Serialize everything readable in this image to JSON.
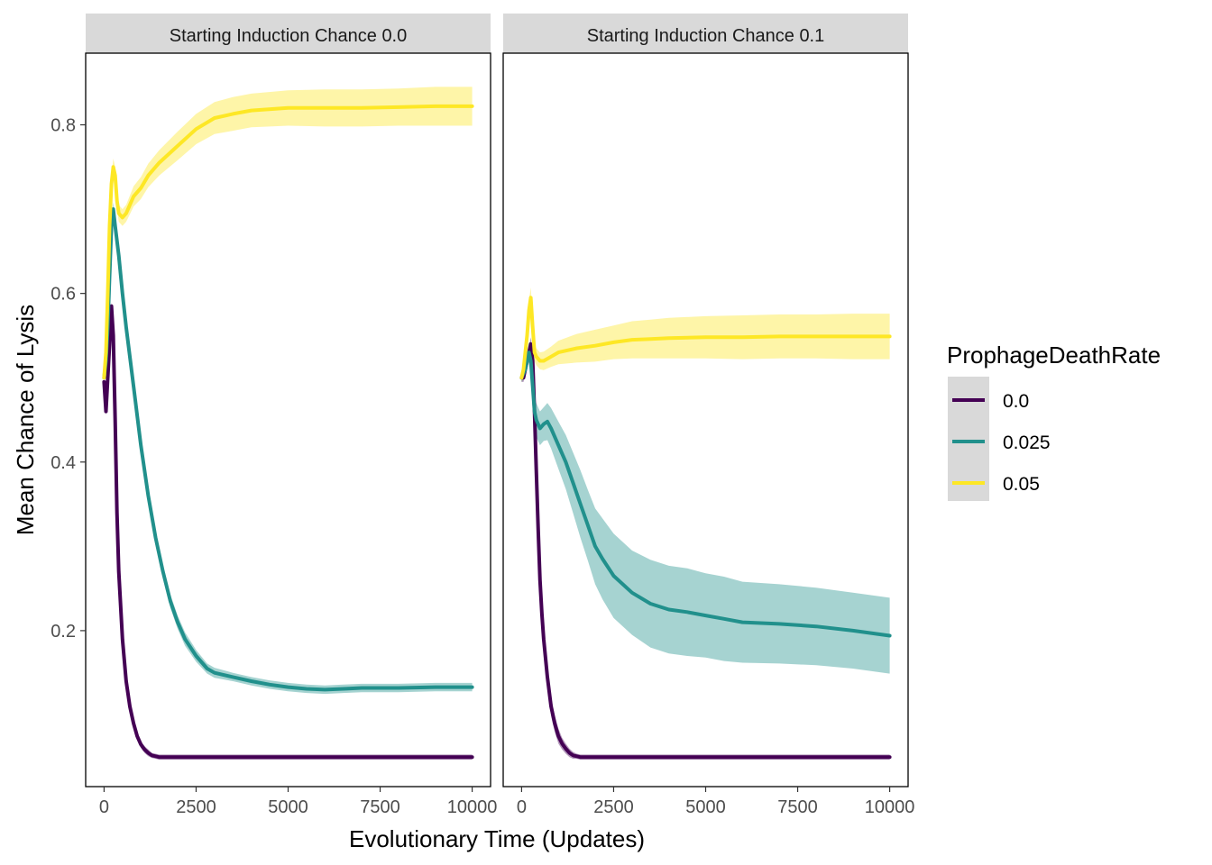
{
  "chart_data": {
    "type": "line",
    "ylabel": "Mean Chance of Lysis",
    "xlabel": "Evolutionary Time (Updates)",
    "xlim": [
      -500,
      10500
    ],
    "ylim": [
      0.015,
      0.885
    ],
    "xticks": [
      0,
      2500,
      5000,
      7500,
      10000
    ],
    "xtick_labels": [
      "0",
      "2500",
      "5000",
      "7500",
      "10000"
    ],
    "yticks": [
      0.2,
      0.4,
      0.6,
      0.8
    ],
    "ytick_labels": [
      "0.2",
      "0.4",
      "0.6",
      "0.8"
    ],
    "grid": false,
    "legend": {
      "title": "ProphageDeathRate",
      "position": "right",
      "entries": [
        "0.0",
        "0.025",
        "0.05"
      ]
    },
    "colors": {
      "0.0": "#440154",
      "0.025": "#21908C",
      "0.05": "#FDE725"
    },
    "band_colors": {
      "0.0": "#440154",
      "0.025": "#21908C",
      "0.05": "#FDE725"
    },
    "facets": [
      {
        "strip_label": "Starting Induction Chance 0.0",
        "series": [
          {
            "name": "0.0",
            "x": [
              0,
              50,
              100,
              150,
              200,
              250,
              300,
              350,
              400,
              500,
              600,
              700,
              800,
              900,
              1000,
              1100,
              1200,
              1300,
              1400,
              1500,
              1600,
              1800,
              2000,
              2500,
              3000,
              4000,
              5000,
              6000,
              7000,
              8000,
              9000,
              10000
            ],
            "y": [
              0.495,
              0.46,
              0.5,
              0.54,
              0.585,
              0.55,
              0.45,
              0.34,
              0.27,
              0.19,
              0.14,
              0.11,
              0.09,
              0.075,
              0.065,
              0.059,
              0.055,
              0.052,
              0.051,
              0.05,
              0.05,
              0.05,
              0.05,
              0.05,
              0.05,
              0.05,
              0.05,
              0.05,
              0.05,
              0.05,
              0.05,
              0.05
            ],
            "band": [
              0.005,
              0.005,
              0.005,
              0.005,
              0.005,
              0.005,
              0.005,
              0.005,
              0.005,
              0.005,
              0.005,
              0.005,
              0.005,
              0.005,
              0.004,
              0.004,
              0.004,
              0.003,
              0.003,
              0.003,
              0.003,
              0.003,
              0.003,
              0.003,
              0.003,
              0.003,
              0.003,
              0.003,
              0.003,
              0.003,
              0.003,
              0.003
            ]
          },
          {
            "name": "0.025",
            "x": [
              0,
              50,
              100,
              150,
              200,
              250,
              300,
              400,
              500,
              600,
              800,
              1000,
              1200,
              1400,
              1600,
              1800,
              2000,
              2200,
              2500,
              2800,
              3000,
              3500,
              4000,
              4500,
              5000,
              5500,
              6000,
              6500,
              7000,
              8000,
              9000,
              10000
            ],
            "y": [
              0.5,
              0.52,
              0.56,
              0.62,
              0.68,
              0.7,
              0.68,
              0.645,
              0.6,
              0.56,
              0.49,
              0.42,
              0.36,
              0.31,
              0.27,
              0.235,
              0.21,
              0.19,
              0.17,
              0.155,
              0.15,
              0.145,
              0.14,
              0.136,
              0.133,
              0.131,
              0.13,
              0.131,
              0.132,
              0.132,
              0.133,
              0.133
            ],
            "band": [
              0.005,
              0.005,
              0.006,
              0.007,
              0.008,
              0.008,
              0.008,
              0.008,
              0.008,
              0.008,
              0.008,
              0.008,
              0.008,
              0.008,
              0.008,
              0.008,
              0.008,
              0.008,
              0.007,
              0.006,
              0.006,
              0.005,
              0.005,
              0.005,
              0.005,
              0.005,
              0.005,
              0.005,
              0.005,
              0.005,
              0.005,
              0.005
            ]
          },
          {
            "name": "0.05",
            "x": [
              0,
              50,
              100,
              150,
              200,
              250,
              300,
              350,
              400,
              500,
              600,
              700,
              800,
              1000,
              1200,
              1500,
              2000,
              2500,
              3000,
              3500,
              4000,
              5000,
              6000,
              7000,
              8000,
              9000,
              10000
            ],
            "y": [
              0.5,
              0.53,
              0.6,
              0.68,
              0.73,
              0.75,
              0.74,
              0.71,
              0.695,
              0.69,
              0.695,
              0.705,
              0.715,
              0.725,
              0.74,
              0.755,
              0.775,
              0.795,
              0.808,
              0.813,
              0.817,
              0.82,
              0.82,
              0.82,
              0.821,
              0.822,
              0.822
            ],
            "band": [
              0.005,
              0.006,
              0.008,
              0.01,
              0.01,
              0.01,
              0.01,
              0.01,
              0.01,
              0.01,
              0.01,
              0.011,
              0.012,
              0.013,
              0.014,
              0.015,
              0.017,
              0.018,
              0.019,
              0.02,
              0.02,
              0.021,
              0.022,
              0.022,
              0.022,
              0.023,
              0.023
            ]
          }
        ]
      },
      {
        "strip_label": "Starting Induction Chance 0.1",
        "series": [
          {
            "name": "0.0",
            "x": [
              0,
              50,
              100,
              150,
              200,
              250,
              300,
              350,
              400,
              450,
              500,
              550,
              600,
              700,
              800,
              900,
              1000,
              1100,
              1200,
              1300,
              1400,
              1500,
              1600,
              1800,
              2000,
              2500,
              3000,
              4000,
              5000,
              6000,
              7000,
              8000,
              9000,
              10000
            ],
            "y": [
              0.5,
              0.5,
              0.51,
              0.52,
              0.53,
              0.54,
              0.52,
              0.46,
              0.39,
              0.32,
              0.26,
              0.22,
              0.19,
              0.145,
              0.11,
              0.09,
              0.075,
              0.066,
              0.06,
              0.055,
              0.052,
              0.051,
              0.05,
              0.05,
              0.05,
              0.05,
              0.05,
              0.05,
              0.05,
              0.05,
              0.05,
              0.05,
              0.05,
              0.05
            ],
            "band": [
              0.005,
              0.005,
              0.005,
              0.006,
              0.006,
              0.008,
              0.01,
              0.012,
              0.012,
              0.012,
              0.012,
              0.012,
              0.012,
              0.012,
              0.011,
              0.01,
              0.009,
              0.007,
              0.006,
              0.005,
              0.004,
              0.003,
              0.003,
              0.003,
              0.003,
              0.003,
              0.003,
              0.003,
              0.003,
              0.003,
              0.003,
              0.003,
              0.003,
              0.003
            ]
          },
          {
            "name": "0.025",
            "x": [
              0,
              50,
              100,
              150,
              200,
              250,
              300,
              350,
              400,
              500,
              600,
              700,
              800,
              1000,
              1200,
              1400,
              1600,
              1800,
              2000,
              2200,
              2500,
              3000,
              3500,
              4000,
              4500,
              5000,
              5500,
              6000,
              7000,
              8000,
              9000,
              10000
            ],
            "y": [
              0.5,
              0.505,
              0.51,
              0.52,
              0.53,
              0.52,
              0.49,
              0.46,
              0.45,
              0.44,
              0.445,
              0.448,
              0.44,
              0.42,
              0.4,
              0.375,
              0.35,
              0.325,
              0.3,
              0.285,
              0.265,
              0.245,
              0.232,
              0.225,
              0.222,
              0.218,
              0.214,
              0.21,
              0.208,
              0.205,
              0.2,
              0.194
            ],
            "band": [
              0.005,
              0.006,
              0.008,
              0.01,
              0.012,
              0.013,
              0.015,
              0.018,
              0.02,
              0.02,
              0.02,
              0.022,
              0.024,
              0.028,
              0.032,
              0.036,
              0.04,
              0.042,
              0.045,
              0.048,
              0.05,
              0.05,
              0.052,
              0.052,
              0.052,
              0.05,
              0.05,
              0.048,
              0.047,
              0.046,
              0.045,
              0.045
            ]
          },
          {
            "name": "0.05",
            "x": [
              0,
              50,
              100,
              150,
              200,
              250,
              300,
              350,
              400,
              500,
              600,
              800,
              1000,
              1500,
              2000,
              2500,
              3000,
              3500,
              4000,
              5000,
              6000,
              7000,
              8000,
              9000,
              10000
            ],
            "y": [
              0.5,
              0.51,
              0.53,
              0.55,
              0.58,
              0.595,
              0.56,
              0.53,
              0.525,
              0.52,
              0.52,
              0.525,
              0.53,
              0.535,
              0.538,
              0.542,
              0.545,
              0.546,
              0.547,
              0.548,
              0.548,
              0.549,
              0.549,
              0.549,
              0.549
            ],
            "band": [
              0.005,
              0.006,
              0.008,
              0.01,
              0.012,
              0.012,
              0.012,
              0.01,
              0.01,
              0.01,
              0.011,
              0.012,
              0.014,
              0.017,
              0.019,
              0.02,
              0.022,
              0.023,
              0.024,
              0.025,
              0.026,
              0.026,
              0.026,
              0.027,
              0.027
            ]
          }
        ]
      }
    ]
  }
}
